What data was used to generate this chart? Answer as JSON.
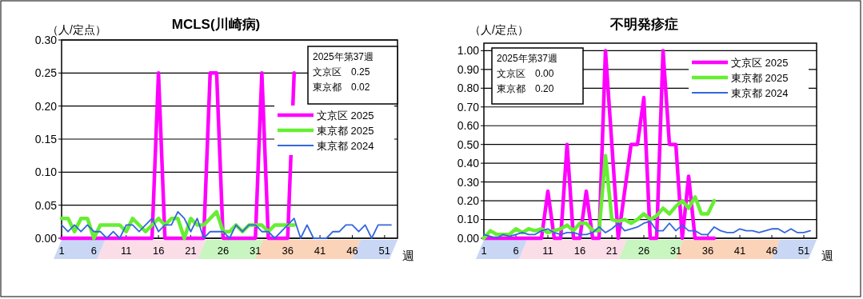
{
  "chart_data": [
    {
      "type": "line",
      "title": "MCLS(川崎病)",
      "ylabel": "（人/定点）",
      "xlabel": "週",
      "xlim": [
        1,
        53
      ],
      "xticks": [
        1,
        6,
        11,
        16,
        21,
        26,
        31,
        36,
        41,
        46,
        51
      ],
      "ylim": [
        0,
        0.3
      ],
      "yticks": [
        {
          "value": 0,
          "label": "0.00"
        },
        {
          "value": 0.05,
          "label": "0.05"
        },
        {
          "value": 0.1,
          "label": "0.10"
        },
        {
          "value": 0.15,
          "label": "0.15"
        },
        {
          "value": 0.2,
          "label": "0.20"
        },
        {
          "value": 0.25,
          "label": "0.25"
        },
        {
          "value": 0.3,
          "label": "0.30"
        }
      ],
      "grid": "y",
      "legend": "right",
      "marker": "none",
      "annotations": [
        "2025年第37週",
        "文京区　0.25",
        "東京都　0.02"
      ],
      "x": [
        1,
        2,
        3,
        4,
        5,
        6,
        7,
        8,
        9,
        10,
        11,
        12,
        13,
        14,
        15,
        16,
        17,
        18,
        19,
        20,
        21,
        22,
        23,
        24,
        25,
        26,
        27,
        28,
        29,
        30,
        31,
        32,
        33,
        34,
        35,
        36,
        37,
        38,
        39,
        40,
        41,
        42,
        43,
        44,
        45,
        46,
        47,
        48,
        49,
        50,
        51,
        52
      ],
      "series": [
        {
          "name": "文京区 2025",
          "color": "#ff00ff",
          "x": [
            1,
            2,
            3,
            4,
            5,
            6,
            7,
            8,
            9,
            10,
            11,
            12,
            13,
            14,
            15,
            16,
            17,
            18,
            19,
            20,
            21,
            22,
            23,
            24,
            25,
            26,
            27,
            28,
            29,
            30,
            31,
            32,
            33,
            34,
            35,
            36,
            37
          ],
          "values": [
            0,
            0,
            0,
            0,
            0,
            0,
            0,
            0,
            0,
            0,
            0,
            0,
            0,
            0,
            0,
            0.25,
            0,
            0,
            0,
            0,
            0,
            0,
            0,
            0.25,
            0.25,
            0,
            0,
            0,
            0,
            0,
            0,
            0.25,
            0,
            0,
            0,
            0,
            0.25
          ]
        },
        {
          "name": "東京都 2025",
          "color": "#66ee33",
          "x": [
            1,
            2,
            3,
            4,
            5,
            6,
            7,
            8,
            9,
            10,
            11,
            12,
            13,
            14,
            15,
            16,
            17,
            18,
            19,
            20,
            21,
            22,
            23,
            24,
            25,
            26,
            27,
            28,
            29,
            30,
            31,
            32,
            33,
            34,
            35,
            36,
            37
          ],
          "values": [
            0.03,
            0.03,
            0.01,
            0.03,
            0.03,
            0,
            0.02,
            0.02,
            0.02,
            0.02,
            0.01,
            0.03,
            0.02,
            0.01,
            0.02,
            0.03,
            0.02,
            0.03,
            0.03,
            0,
            0.03,
            0.02,
            0.02,
            0.03,
            0.04,
            0.01,
            0.01,
            0.02,
            0.01,
            0.02,
            0.02,
            0.02,
            0.01,
            0.02,
            0.02,
            0.02,
            0.02
          ]
        },
        {
          "name": "東京都 2024",
          "color": "#3366dd",
          "values": [
            0.02,
            0.01,
            0.02,
            0.01,
            0.02,
            0.01,
            0.01,
            0,
            0.01,
            0,
            0.02,
            0.02,
            0.01,
            0.02,
            0.03,
            0.01,
            0.02,
            0.02,
            0.04,
            0.03,
            0.01,
            0.03,
            0,
            0.01,
            0.01,
            0.01,
            0,
            0.02,
            0.01,
            0.02,
            0.02,
            0.01,
            0.01,
            0,
            0.01,
            0.02,
            0.03,
            0,
            0.02,
            0,
            0,
            0,
            0.01,
            0.01,
            0.02,
            0.02,
            0.01,
            0.02,
            0,
            0.02,
            0.02,
            0.02
          ]
        }
      ]
    },
    {
      "type": "line",
      "title": "不明発疹症",
      "ylabel": "（人/定点）",
      "xlabel": "週",
      "xlim": [
        1,
        53
      ],
      "xticks": [
        1,
        6,
        11,
        16,
        21,
        26,
        31,
        36,
        41,
        46,
        51
      ],
      "ylim": [
        0,
        1.04
      ],
      "yticks": [
        {
          "value": 0,
          "label": "0.00"
        },
        {
          "value": 0.1,
          "label": "0.10"
        },
        {
          "value": 0.2,
          "label": "0.20"
        },
        {
          "value": 0.3,
          "label": "0.30"
        },
        {
          "value": 0.4,
          "label": "0.40"
        },
        {
          "value": 0.5,
          "label": "0.50"
        },
        {
          "value": 0.6,
          "label": "0.60"
        },
        {
          "value": 0.7,
          "label": "0.70"
        },
        {
          "value": 0.8,
          "label": "0.80"
        },
        {
          "value": 0.9,
          "label": "0.90"
        },
        {
          "value": 1,
          "label": "1.00"
        }
      ],
      "grid": "y",
      "legend": "top right",
      "marker": "none",
      "annotations": [
        "2025年第37週",
        "文京区　0.00",
        "東京都　0.20"
      ],
      "x": [
        1,
        2,
        3,
        4,
        5,
        6,
        7,
        8,
        9,
        10,
        11,
        12,
        13,
        14,
        15,
        16,
        17,
        18,
        19,
        20,
        21,
        22,
        23,
        24,
        25,
        26,
        27,
        28,
        29,
        30,
        31,
        32,
        33,
        34,
        35,
        36,
        37,
        38,
        39,
        40,
        41,
        42,
        43,
        44,
        45,
        46,
        47,
        48,
        49,
        50,
        51,
        52
      ],
      "series": [
        {
          "name": "文京区 2025",
          "color": "#ff00ff",
          "x": [
            1,
            2,
            3,
            4,
            5,
            6,
            7,
            8,
            9,
            10,
            11,
            12,
            13,
            14,
            15,
            16,
            17,
            18,
            19,
            20,
            21,
            22,
            23,
            24,
            25,
            26,
            27,
            28,
            29,
            30,
            31,
            32,
            33,
            34,
            35,
            36,
            37
          ],
          "values": [
            0,
            0,
            0,
            0,
            0,
            0,
            0,
            0,
            0,
            0,
            0.25,
            0,
            0,
            0.5,
            0,
            0,
            0.25,
            0,
            0,
            1,
            0.5,
            0,
            0.25,
            0.5,
            0.5,
            0.75,
            0,
            0,
            1,
            0.5,
            0.5,
            0,
            0.33,
            0,
            0,
            0,
            0
          ]
        },
        {
          "name": "東京都 2025",
          "color": "#66ee33",
          "x": [
            1,
            2,
            3,
            4,
            5,
            6,
            7,
            8,
            9,
            10,
            11,
            12,
            13,
            14,
            15,
            16,
            17,
            18,
            19,
            20,
            21,
            22,
            23,
            24,
            25,
            26,
            27,
            28,
            29,
            30,
            31,
            32,
            33,
            34,
            35,
            36,
            37
          ],
          "values": [
            0,
            0.04,
            0.02,
            0.02,
            0.02,
            0.05,
            0.03,
            0.05,
            0.04,
            0.05,
            0.03,
            0.04,
            0.05,
            0.07,
            0.04,
            0.08,
            0.08,
            0.04,
            0.04,
            0.44,
            0.1,
            0.09,
            0.1,
            0.08,
            0.1,
            0.13,
            0.1,
            0.12,
            0.16,
            0.13,
            0.17,
            0.2,
            0.16,
            0.22,
            0.13,
            0.13,
            0.2
          ]
        },
        {
          "name": "東京都 2024",
          "color": "#3366dd",
          "values": [
            0.02,
            0.01,
            0,
            0.02,
            0.01,
            0.02,
            0.03,
            0.02,
            0.02,
            0.04,
            0.05,
            0.03,
            0.02,
            0.03,
            0.03,
            0.02,
            0.02,
            0.03,
            0.06,
            0.03,
            0.05,
            0.08,
            0.04,
            0.05,
            0.06,
            0.08,
            0.09,
            0.04,
            0.04,
            0.08,
            0.04,
            0.07,
            0.04,
            0.04,
            0.02,
            0.02,
            0.06,
            0.04,
            0.03,
            0.03,
            0.05,
            0.04,
            0.04,
            0.03,
            0.04,
            0.05,
            0.05,
            0.03,
            0.05,
            0.03,
            0.03,
            0.04
          ]
        }
      ]
    }
  ]
}
